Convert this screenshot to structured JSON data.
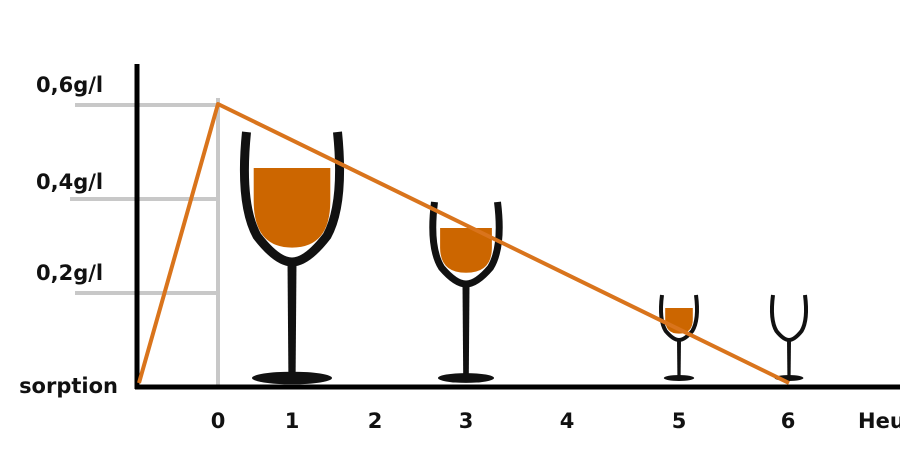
{
  "chart_data": {
    "type": "line",
    "title": "",
    "xlabel": "Heu",
    "ylabel": "",
    "y_tick_labels": [
      "0,2g/l",
      "0,4g/l",
      "0,6g/l"
    ],
    "y_ticks": [
      0.2,
      0.4,
      0.6
    ],
    "x_start_label": "sorption",
    "x_tick_labels": [
      "0",
      "1",
      "2",
      "3",
      "4",
      "5",
      "6"
    ],
    "x_ticks": [
      0,
      1,
      2,
      3,
      4,
      5,
      6
    ],
    "ylim": [
      0,
      0.6
    ],
    "grid": "horizontal lines at y ticks, vertical line at x=0",
    "series": [
      {
        "points": [
          {
            "x": "sorption",
            "y": 0
          },
          {
            "x": 0,
            "y": 0.6
          },
          {
            "x": 6,
            "y": 0
          }
        ],
        "color": "#d9741c"
      }
    ],
    "glasses": [
      {
        "hour": 1,
        "fill": "full"
      },
      {
        "hour": 3,
        "fill": "partial"
      },
      {
        "hour": 5,
        "fill": "low"
      },
      {
        "hour": 6,
        "fill": "empty"
      }
    ],
    "colors": {
      "line": "#d9741c",
      "wine": "#cc6600",
      "axis": "#000000",
      "grid": "#c8c8c8"
    }
  }
}
